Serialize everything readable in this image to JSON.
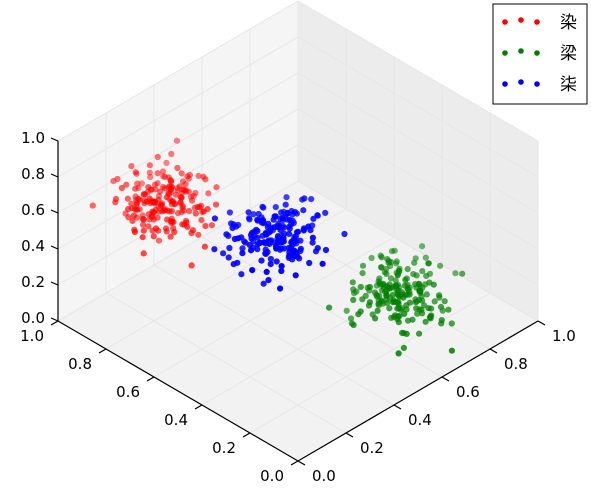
{
  "chart_data": {
    "type": "scatter",
    "projection": "3d",
    "grid": true,
    "legend_position": "top-right",
    "axes": {
      "x": {
        "range": [
          0,
          1
        ],
        "ticks": [
          "0.0",
          "0.2",
          "0.4",
          "0.6",
          "0.8",
          "1.0"
        ]
      },
      "y": {
        "range": [
          0,
          1
        ],
        "ticks": [
          "0.0",
          "0.2",
          "0.4",
          "0.6",
          "0.8",
          "1.0"
        ]
      },
      "z": {
        "range": [
          0,
          1
        ],
        "ticks": [
          "0.0",
          "0.2",
          "0.4",
          "0.6",
          "0.8",
          "1.0"
        ]
      }
    },
    "series": [
      {
        "name": "染",
        "color": "#ff0000",
        "center": [
          0.2,
          0.75,
          0.7
        ],
        "spread": [
          0.07,
          0.07,
          0.07
        ],
        "count": 200
      },
      {
        "name": "梁",
        "color": "#008000",
        "center": [
          0.6,
          0.2,
          0.3
        ],
        "spread": [
          0.07,
          0.07,
          0.07
        ],
        "count": 200
      },
      {
        "name": "柒",
        "color": "#0000ff",
        "center": [
          0.2,
          0.3,
          0.85
        ],
        "spread": [
          0.07,
          0.07,
          0.07
        ],
        "count": 200
      }
    ]
  }
}
